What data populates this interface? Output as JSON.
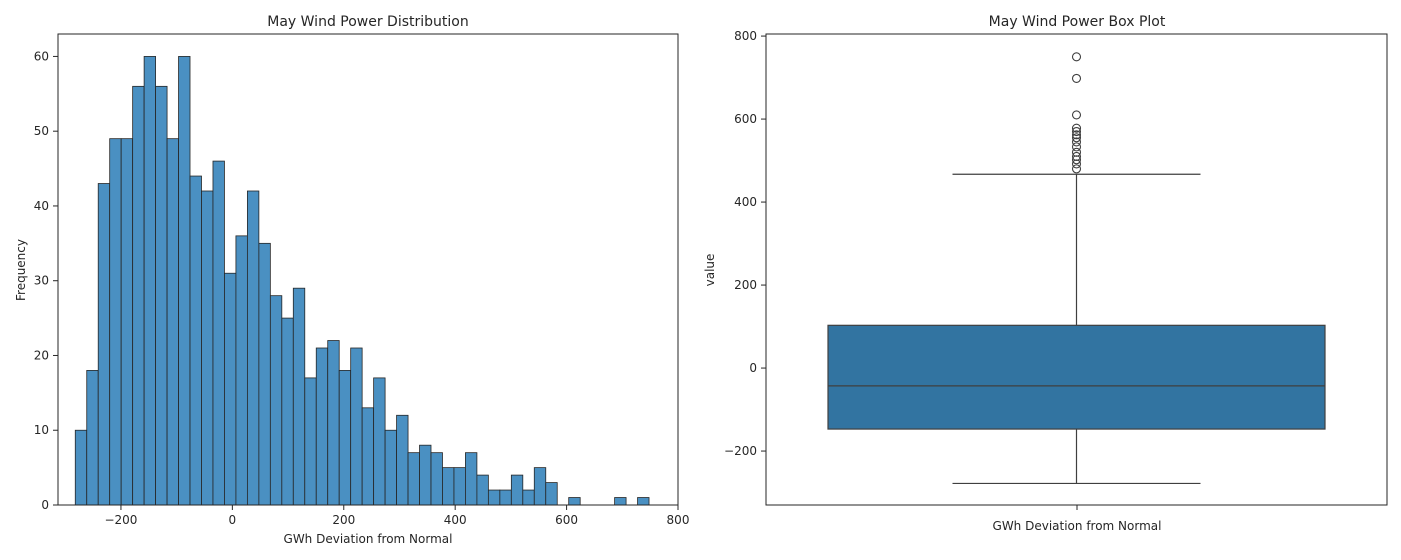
{
  "chart_data": [
    {
      "type": "bar",
      "title": "May Wind Power Distribution",
      "xlabel": "GWh Deviation from Normal",
      "ylabel": "Frequency",
      "xlim": [
        -313,
        800
      ],
      "ylim": [
        0,
        63
      ],
      "xticks": [
        -200,
        0,
        200,
        400,
        600,
        800
      ],
      "yticks": [
        0,
        10,
        20,
        30,
        40,
        50,
        60
      ],
      "bin_start": -282,
      "bin_width": 20.6,
      "values": [
        10,
        18,
        43,
        49,
        49,
        56,
        60,
        56,
        49,
        60,
        44,
        42,
        46,
        31,
        36,
        42,
        35,
        28,
        25,
        29,
        17,
        21,
        22,
        18,
        21,
        13,
        17,
        10,
        12,
        7,
        8,
        7,
        5,
        5,
        7,
        4,
        2,
        2,
        4,
        2,
        5,
        3,
        0,
        1,
        0,
        0,
        0,
        1,
        0,
        1
      ],
      "bar_color": "#4a90c2",
      "grid": false
    },
    {
      "type": "box",
      "title": "May Wind Power Box Plot",
      "xlabel": "GWh Deviation from Normal",
      "ylabel": "value",
      "ylim": [
        -330,
        805
      ],
      "yticks": [
        -200,
        0,
        200,
        400,
        600,
        800
      ],
      "whisker_low": -278,
      "q1": -147,
      "median": -43,
      "q3": 103,
      "whisker_high": 467,
      "outliers": [
        480,
        492,
        502,
        510,
        520,
        533,
        545,
        555,
        562,
        570,
        578,
        610,
        698,
        750
      ],
      "box_color": "#3274a1",
      "grid": false
    }
  ]
}
